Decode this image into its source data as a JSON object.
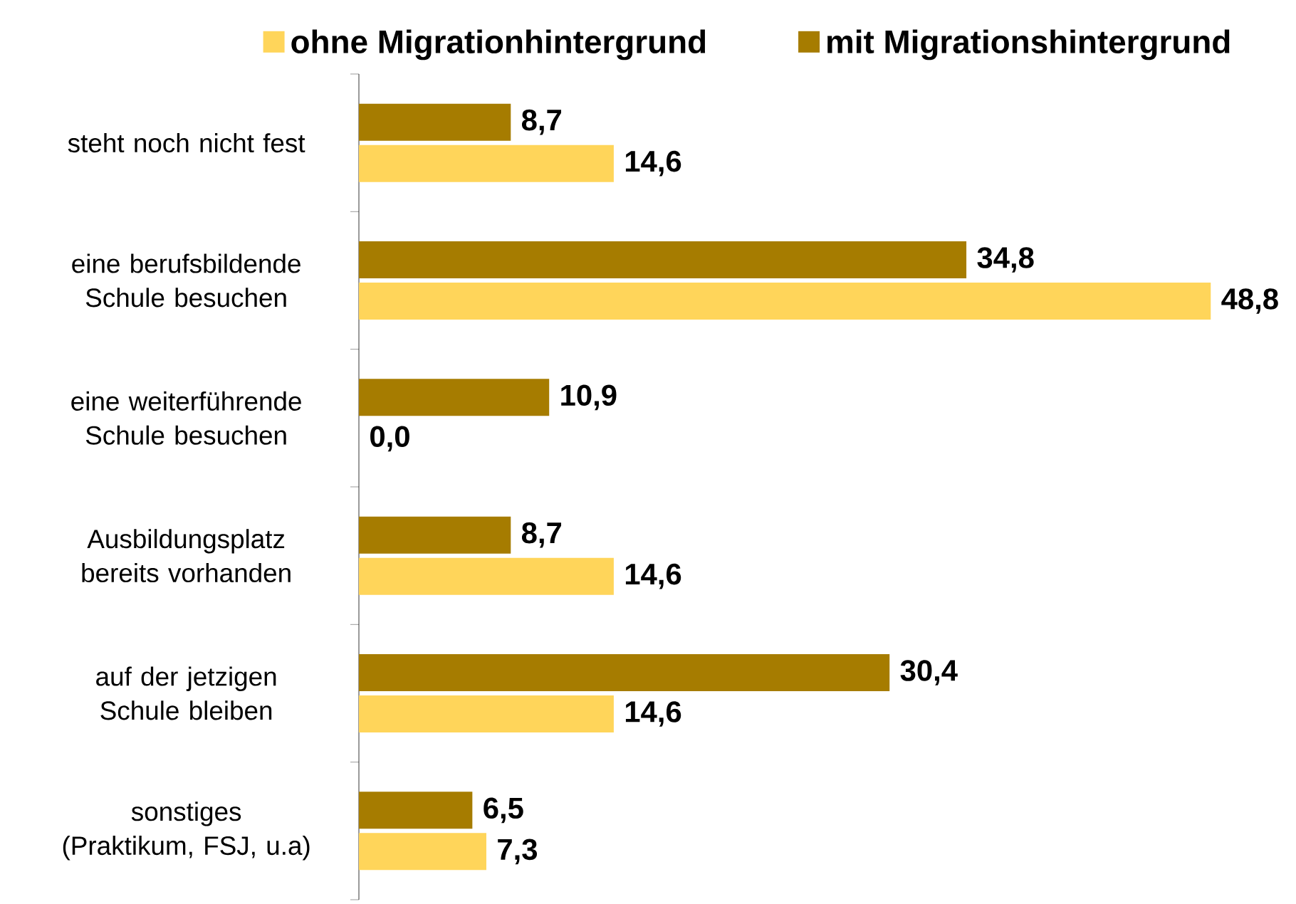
{
  "chart_data": {
    "type": "bar",
    "orientation": "horizontal",
    "legend": "top",
    "categories": [
      "steht noch nicht fest",
      "eine berufsbildende Schule besuchen",
      "eine weiterführende Schule besuchen",
      "Ausbildungsplatz bereits vorhanden",
      "auf der jetzigen Schule bleiben",
      "sonstiges (Praktikum, FSJ, u.a)"
    ],
    "series": [
      {
        "name": "ohne Migrationhintergrund",
        "color": "#ffd55a",
        "values": [
          14.6,
          48.8,
          0.0,
          14.6,
          14.6,
          7.3
        ],
        "value_labels": [
          "14,6",
          "48,8",
          "0,0",
          "14,6",
          "14,6",
          "7,3"
        ]
      },
      {
        "name": "mit Migrationshintergrund",
        "color": "#a67c00",
        "values": [
          8.7,
          34.8,
          10.9,
          8.7,
          30.4,
          6.5
        ],
        "value_labels": [
          "8,7",
          "34,8",
          "10,9",
          "8,7",
          "30,4",
          "6,5"
        ]
      }
    ]
  }
}
